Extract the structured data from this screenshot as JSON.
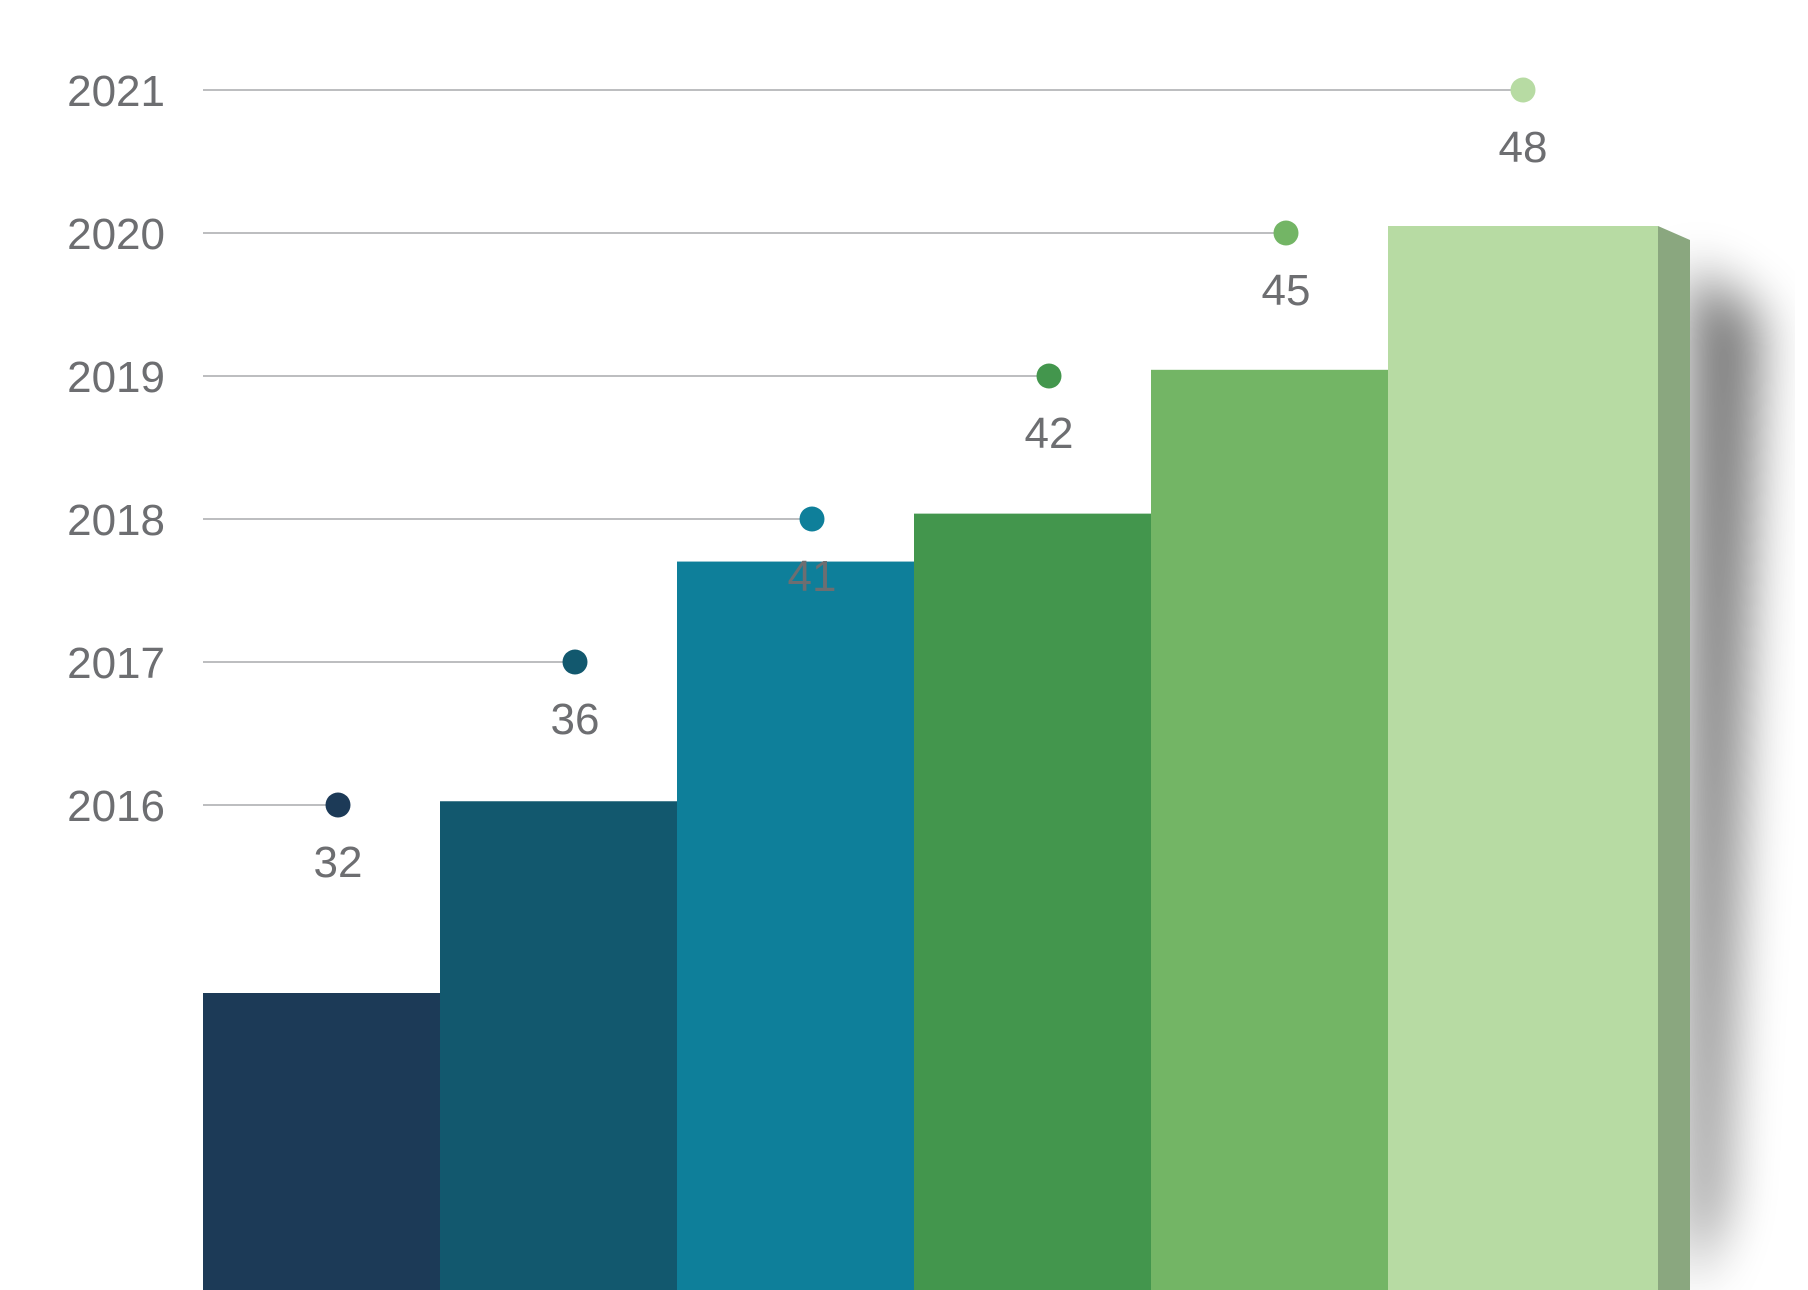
{
  "chart_data": {
    "type": "bar",
    "categories": [
      "2016",
      "2017",
      "2018",
      "2019",
      "2020",
      "2021"
    ],
    "values": [
      32,
      36,
      41,
      42,
      45,
      48
    ],
    "value_labels": [
      "32",
      "36",
      "41",
      "42",
      "45",
      "48"
    ],
    "title": "",
    "xlabel": "",
    "ylabel": "",
    "style": "3d",
    "grid": false,
    "legend": "none",
    "colors": {
      "front": [
        "#1c3a57",
        "#12586e",
        "#0e7f9a",
        "#43964d",
        "#73b565",
        "#b7dba3"
      ],
      "side": [
        "#0a243c",
        "#033f53",
        "#06637a",
        "#2d7738",
        "#5a8f50",
        "#8aa77f"
      ],
      "dot": [
        "#1c3a57",
        "#12586e",
        "#0e7f9a",
        "#43964d",
        "#73b565",
        "#b7dba3"
      ]
    }
  }
}
